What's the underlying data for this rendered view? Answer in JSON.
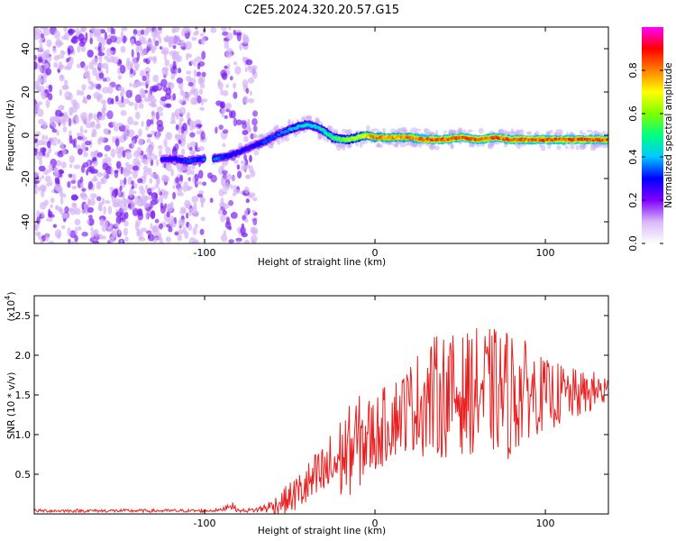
{
  "title": "C2E5.2024.320.20.57.G15",
  "chart_data": [
    {
      "type": "heatmap",
      "title": "C2E5.2024.320.20.57.G15",
      "xlabel": "Height of straight line (km)",
      "ylabel": "Frequency (Hz)",
      "xlim": [
        -200,
        137
      ],
      "ylim": [
        -50,
        50
      ],
      "x_ticks": [
        -100,
        0,
        100
      ],
      "x_tick_labels": [
        "-100",
        "0",
        "100"
      ],
      "y_ticks": [
        -40,
        -20,
        0,
        20,
        40
      ],
      "y_tick_labels": [
        "-40",
        "-20",
        "0",
        "20",
        "40"
      ],
      "colorbar": {
        "label": "Normalized spectral amplitude",
        "range": [
          0,
          1
        ],
        "ticks": [
          0.0,
          0.2,
          0.4,
          0.6,
          0.8
        ],
        "tick_labels": [
          "0.0",
          "0.2",
          "0.4",
          "0.6",
          "0.8"
        ],
        "colormap": [
          "#ffffff",
          "#d8b8f8",
          "#8000ff",
          "#0000ff",
          "#00c8ff",
          "#00ff80",
          "#80ff00",
          "#ffff00",
          "#ff8000",
          "#ff0000",
          "#ff00ff"
        ]
      },
      "ridge": {
        "x": [
          -125,
          -117,
          -110,
          -102,
          -95,
          -88,
          -80,
          -72,
          -65,
          -58,
          -52,
          -45,
          -40,
          -35,
          -30,
          -25,
          -20,
          -15,
          -10,
          -5,
          0,
          10,
          20,
          30,
          40,
          50,
          60,
          70,
          80,
          90,
          100,
          110,
          120,
          130,
          137
        ],
        "y": [
          -11,
          -11,
          -12,
          -11,
          -11,
          -10,
          -8,
          -5,
          -3,
          0,
          2,
          4,
          5,
          4,
          2,
          -1,
          -2,
          -2,
          -1,
          0,
          -1,
          -1,
          -1,
          -2,
          -2,
          -1,
          -2,
          -1,
          -2,
          -2,
          -2,
          -2,
          -2,
          -2,
          -2
        ],
        "amplitude": [
          0.3,
          0.3,
          0.35,
          0.35,
          0.4,
          0.35,
          0.3,
          0.3,
          0.35,
          0.35,
          0.4,
          0.45,
          0.5,
          0.45,
          0.5,
          0.55,
          0.6,
          0.65,
          0.7,
          0.8,
          0.85,
          0.85,
          0.85,
          0.9,
          0.9,
          0.9,
          0.9,
          0.9,
          0.9,
          0.9,
          0.9,
          0.9,
          0.9,
          0.9,
          0.9
        ]
      },
      "noise_region": {
        "x_range": [
          -200,
          -70
        ],
        "amplitude_range": [
          0.05,
          0.2
        ]
      }
    },
    {
      "type": "line",
      "xlabel": "Height of straight line (km)",
      "ylabel": "SNR (10 * v/v)",
      "y_multiplier_label": "(x10",
      "y_multiplier_exp": "4",
      "y_multiplier_close": ")",
      "xlim": [
        -200,
        137
      ],
      "ylim": [
        0,
        2.75
      ],
      "x_ticks": [
        -100,
        0,
        100
      ],
      "x_tick_labels": [
        "-100",
        "0",
        "100"
      ],
      "y_ticks": [
        0.5,
        1.0,
        1.5,
        2.0,
        2.5
      ],
      "y_tick_labels": [
        "0.5",
        "1.0",
        "1.5",
        "2.0",
        "2.5"
      ],
      "series": [
        {
          "color": "#e82020",
          "envelope": {
            "x": [
              -200,
              -100,
              -90,
              -85,
              -80,
              -70,
              -60,
              -50,
              -40,
              -30,
              -20,
              -10,
              0,
              10,
              20,
              30,
              40,
              50,
              60,
              70,
              80,
              90,
              100,
              110,
              120,
              130,
              137
            ],
            "mean": [
              0.04,
              0.04,
              0.05,
              0.12,
              0.04,
              0.05,
              0.1,
              0.2,
              0.35,
              0.5,
              0.7,
              0.9,
              1.0,
              1.2,
              1.35,
              1.45,
              1.5,
              1.5,
              1.55,
              1.55,
              1.5,
              1.55,
              1.5,
              1.5,
              1.5,
              1.55,
              1.55
            ],
            "spread": [
              0.02,
              0.02,
              0.02,
              0.06,
              0.02,
              0.03,
              0.1,
              0.2,
              0.3,
              0.4,
              0.55,
              0.6,
              0.5,
              0.5,
              0.55,
              0.75,
              0.8,
              0.75,
              0.8,
              0.8,
              0.85,
              0.6,
              0.45,
              0.4,
              0.3,
              0.25,
              0.25
            ]
          }
        }
      ]
    }
  ]
}
